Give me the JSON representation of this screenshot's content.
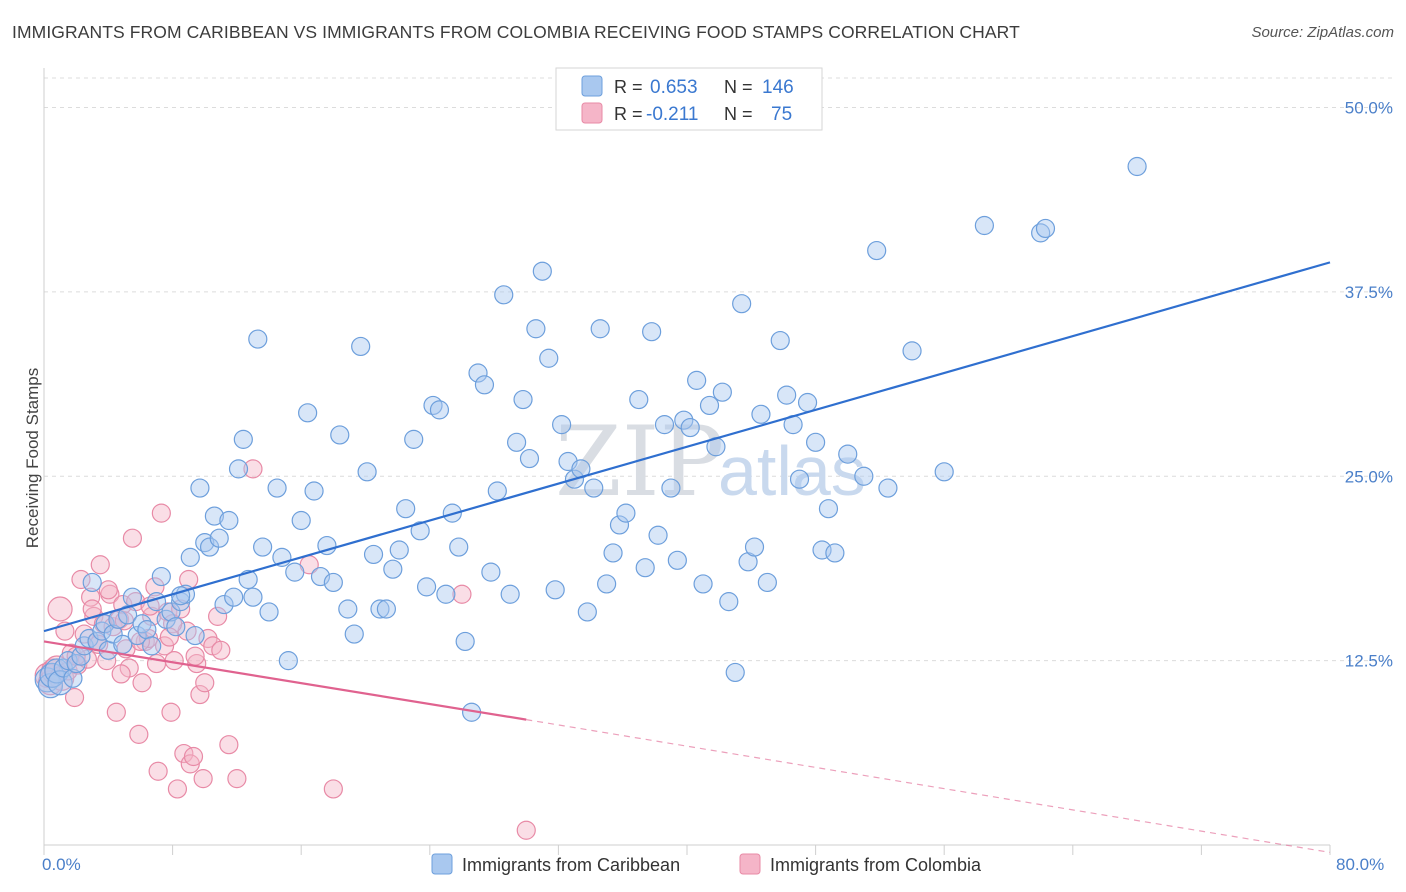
{
  "title": "IMMIGRANTS FROM CARIBBEAN VS IMMIGRANTS FROM COLOMBIA RECEIVING FOOD STAMPS CORRELATION CHART",
  "source": "Source: ZipAtlas.com",
  "watermark": {
    "zip": "ZIP",
    "atlas": "atlas"
  },
  "colors": {
    "blue_fill": "#a9c8ef",
    "blue_stroke": "#6d9fdc",
    "blue_line": "#2f6fcf",
    "pink_fill": "#f5b5c8",
    "pink_stroke": "#e88aa6",
    "pink_line": "#e0628f",
    "grid": "#dcdcdc",
    "tick_text": "#4a7fc9"
  },
  "legend": {
    "rows": [
      {
        "r_label": "R =",
        "r_value": "0.653",
        "n_label": "N =",
        "n_value": "146"
      },
      {
        "r_label": "R =",
        "r_value": "-0.211",
        "n_label": "N =",
        "n_value": "75"
      }
    ]
  },
  "chart_data": {
    "type": "scatter",
    "title": "IMMIGRANTS FROM CARIBBEAN VS IMMIGRANTS FROM COLOMBIA RECEIVING FOOD STAMPS CORRELATION CHART",
    "xlabel": "",
    "ylabel": "Receiving Food Stamps",
    "xlim": [
      0,
      80
    ],
    "ylim": [
      0,
      52
    ],
    "x_tick_labels": [
      "0.0%",
      "80.0%"
    ],
    "y_ticks": [
      12.5,
      25.0,
      37.5,
      50.0
    ],
    "y_tick_labels": [
      "12.5%",
      "25.0%",
      "37.5%",
      "50.0%"
    ],
    "grid": "horizontal dashed",
    "legend_position": "top-center",
    "series": [
      {
        "name": "Immigrants from Caribbean",
        "color": "#6d9fdc",
        "trend": {
          "x0": 0,
          "y0": 14.5,
          "x1": 80,
          "y1": 39.5,
          "style": "solid"
        },
        "points": [
          [
            0.2,
            11.2
          ],
          [
            0.4,
            10.8
          ],
          [
            0.5,
            11.5
          ],
          [
            0.8,
            11.8
          ],
          [
            1.0,
            11.0
          ],
          [
            1.2,
            12.0
          ],
          [
            1.5,
            12.5
          ],
          [
            1.8,
            11.3
          ],
          [
            2.0,
            12.3
          ],
          [
            2.3,
            12.8
          ],
          [
            2.5,
            13.5
          ],
          [
            2.8,
            14.0
          ],
          [
            3.0,
            17.8
          ],
          [
            3.3,
            13.8
          ],
          [
            3.6,
            14.5
          ],
          [
            3.8,
            15.0
          ],
          [
            4.0,
            13.2
          ],
          [
            4.3,
            14.3
          ],
          [
            4.6,
            15.3
          ],
          [
            4.9,
            13.6
          ],
          [
            5.2,
            15.6
          ],
          [
            5.5,
            16.8
          ],
          [
            5.8,
            14.2
          ],
          [
            6.1,
            15.0
          ],
          [
            6.4,
            14.6
          ],
          [
            6.7,
            13.5
          ],
          [
            7.0,
            16.5
          ],
          [
            7.3,
            18.2
          ],
          [
            7.6,
            15.3
          ],
          [
            7.9,
            15.8
          ],
          [
            8.2,
            14.8
          ],
          [
            8.5,
            16.5
          ],
          [
            8.8,
            17.0
          ],
          [
            9.1,
            19.5
          ],
          [
            9.4,
            14.2
          ],
          [
            9.7,
            24.2
          ],
          [
            10.0,
            20.5
          ],
          [
            10.3,
            20.2
          ],
          [
            10.6,
            22.3
          ],
          [
            10.9,
            20.8
          ],
          [
            11.2,
            16.3
          ],
          [
            11.5,
            22.0
          ],
          [
            11.8,
            16.8
          ],
          [
            12.1,
            25.5
          ],
          [
            12.4,
            27.5
          ],
          [
            12.7,
            18.0
          ],
          [
            13.0,
            16.8
          ],
          [
            13.3,
            34.3
          ],
          [
            13.6,
            20.2
          ],
          [
            14.0,
            15.8
          ],
          [
            14.5,
            24.2
          ],
          [
            14.8,
            19.5
          ],
          [
            15.2,
            12.5
          ],
          [
            15.6,
            18.5
          ],
          [
            16.0,
            22.0
          ],
          [
            16.4,
            29.3
          ],
          [
            16.8,
            24.0
          ],
          [
            17.2,
            18.2
          ],
          [
            17.6,
            20.3
          ],
          [
            18.0,
            17.8
          ],
          [
            18.4,
            27.8
          ],
          [
            18.9,
            16.0
          ],
          [
            19.3,
            14.3
          ],
          [
            19.7,
            33.8
          ],
          [
            20.1,
            25.3
          ],
          [
            20.5,
            19.7
          ],
          [
            20.9,
            16.0
          ],
          [
            21.3,
            16.0
          ],
          [
            21.7,
            18.7
          ],
          [
            22.1,
            20.0
          ],
          [
            22.5,
            22.8
          ],
          [
            23.0,
            27.5
          ],
          [
            23.4,
            21.3
          ],
          [
            23.8,
            17.5
          ],
          [
            24.2,
            29.8
          ],
          [
            24.6,
            29.5
          ],
          [
            25.0,
            17.0
          ],
          [
            25.4,
            22.5
          ],
          [
            25.8,
            20.2
          ],
          [
            26.2,
            13.8
          ],
          [
            26.6,
            9.0
          ],
          [
            27.0,
            32.0
          ],
          [
            27.4,
            31.2
          ],
          [
            27.8,
            18.5
          ],
          [
            28.2,
            24.0
          ],
          [
            28.6,
            37.3
          ],
          [
            29.0,
            17.0
          ],
          [
            29.4,
            27.3
          ],
          [
            29.8,
            30.2
          ],
          [
            30.2,
            26.2
          ],
          [
            30.6,
            35.0
          ],
          [
            31.0,
            38.9
          ],
          [
            31.4,
            33.0
          ],
          [
            31.8,
            17.3
          ],
          [
            32.2,
            28.5
          ],
          [
            32.6,
            26.0
          ],
          [
            33.0,
            24.8
          ],
          [
            33.4,
            25.5
          ],
          [
            33.8,
            15.8
          ],
          [
            34.2,
            24.2
          ],
          [
            34.6,
            35.0
          ],
          [
            35.0,
            17.7
          ],
          [
            35.4,
            19.8
          ],
          [
            35.8,
            21.7
          ],
          [
            36.2,
            22.5
          ],
          [
            37.0,
            30.2
          ],
          [
            37.4,
            18.8
          ],
          [
            37.8,
            34.8
          ],
          [
            38.2,
            21.0
          ],
          [
            38.6,
            28.5
          ],
          [
            39.0,
            24.2
          ],
          [
            39.4,
            19.3
          ],
          [
            39.8,
            28.8
          ],
          [
            40.2,
            28.3
          ],
          [
            40.6,
            31.5
          ],
          [
            41.0,
            17.7
          ],
          [
            41.4,
            29.8
          ],
          [
            41.8,
            27.0
          ],
          [
            42.2,
            30.7
          ],
          [
            42.6,
            16.5
          ],
          [
            43.0,
            11.7
          ],
          [
            43.4,
            36.7
          ],
          [
            43.8,
            19.2
          ],
          [
            44.2,
            20.2
          ],
          [
            44.6,
            29.2
          ],
          [
            45.0,
            17.8
          ],
          [
            45.8,
            34.2
          ],
          [
            46.2,
            30.5
          ],
          [
            46.6,
            28.5
          ],
          [
            47.0,
            24.8
          ],
          [
            47.5,
            30.0
          ],
          [
            48.0,
            27.3
          ],
          [
            48.4,
            20.0
          ],
          [
            48.8,
            22.8
          ],
          [
            49.2,
            19.8
          ],
          [
            50.0,
            26.5
          ],
          [
            51.0,
            25.0
          ],
          [
            51.8,
            40.3
          ],
          [
            52.5,
            24.2
          ],
          [
            54.0,
            33.5
          ],
          [
            56.0,
            25.3
          ],
          [
            58.5,
            42.0
          ],
          [
            62.0,
            41.5
          ],
          [
            62.3,
            41.8
          ],
          [
            68.0,
            46.0
          ],
          [
            8.5,
            16.9
          ]
        ]
      },
      {
        "name": "Immigrants from Colombia",
        "color": "#e88aa6",
        "trend": {
          "x0": 0,
          "y0": 13.8,
          "x1": 30,
          "y1": 8.5,
          "style": "solid",
          "extend_to": [
            80,
            -0.5
          ],
          "extend_style": "dashed"
        },
        "points": [
          [
            0.2,
            11.5
          ],
          [
            0.4,
            11.0
          ],
          [
            0.6,
            11.8
          ],
          [
            0.8,
            12.0
          ],
          [
            1.0,
            16.0
          ],
          [
            1.1,
            11.3
          ],
          [
            1.3,
            14.5
          ],
          [
            1.5,
            11.8
          ],
          [
            1.7,
            13.0
          ],
          [
            1.9,
            10.0
          ],
          [
            2.1,
            12.2
          ],
          [
            2.3,
            18.0
          ],
          [
            2.5,
            14.3
          ],
          [
            2.7,
            12.6
          ],
          [
            2.9,
            16.8
          ],
          [
            3.1,
            15.5
          ],
          [
            3.3,
            13.8
          ],
          [
            3.5,
            19.0
          ],
          [
            3.7,
            15.0
          ],
          [
            3.9,
            12.5
          ],
          [
            4.1,
            17.0
          ],
          [
            4.3,
            14.8
          ],
          [
            4.5,
            9.0
          ],
          [
            4.7,
            15.3
          ],
          [
            4.9,
            16.3
          ],
          [
            5.1,
            13.3
          ],
          [
            5.3,
            12.0
          ],
          [
            5.5,
            20.8
          ],
          [
            5.7,
            16.5
          ],
          [
            5.9,
            7.5
          ],
          [
            6.1,
            11.0
          ],
          [
            6.3,
            13.8
          ],
          [
            6.5,
            14.0
          ],
          [
            6.7,
            15.5
          ],
          [
            6.9,
            17.5
          ],
          [
            7.1,
            5.0
          ],
          [
            7.3,
            22.5
          ],
          [
            7.5,
            13.5
          ],
          [
            7.7,
            15.8
          ],
          [
            7.9,
            9.0
          ],
          [
            8.1,
            12.5
          ],
          [
            8.3,
            3.8
          ],
          [
            8.5,
            16.0
          ],
          [
            8.7,
            6.2
          ],
          [
            8.9,
            14.5
          ],
          [
            9.1,
            5.5
          ],
          [
            9.3,
            6.0
          ],
          [
            9.5,
            12.3
          ],
          [
            9.7,
            10.2
          ],
          [
            9.9,
            4.5
          ],
          [
            10.2,
            14.0
          ],
          [
            10.5,
            13.5
          ],
          [
            11.0,
            13.2
          ],
          [
            11.5,
            6.8
          ],
          [
            12.0,
            4.5
          ],
          [
            13.0,
            25.5
          ],
          [
            16.5,
            19.0
          ],
          [
            18.0,
            3.8
          ],
          [
            26.0,
            17.0
          ],
          [
            30.0,
            1.0
          ],
          [
            3.0,
            16.0
          ],
          [
            4.0,
            17.3
          ],
          [
            5.0,
            15.2
          ],
          [
            6.0,
            13.8
          ],
          [
            7.0,
            12.3
          ],
          [
            8.0,
            15.0
          ],
          [
            9.0,
            18.0
          ],
          [
            10.0,
            11.0
          ],
          [
            10.8,
            15.5
          ],
          [
            2.0,
            12.8
          ],
          [
            3.4,
            13.6
          ],
          [
            4.8,
            11.6
          ],
          [
            6.6,
            16.2
          ],
          [
            7.8,
            14.1
          ],
          [
            9.4,
            12.8
          ]
        ]
      }
    ]
  },
  "bottom_legend": [
    {
      "label": "Immigrants from Caribbean"
    },
    {
      "label": "Immigrants from Colombia"
    }
  ]
}
